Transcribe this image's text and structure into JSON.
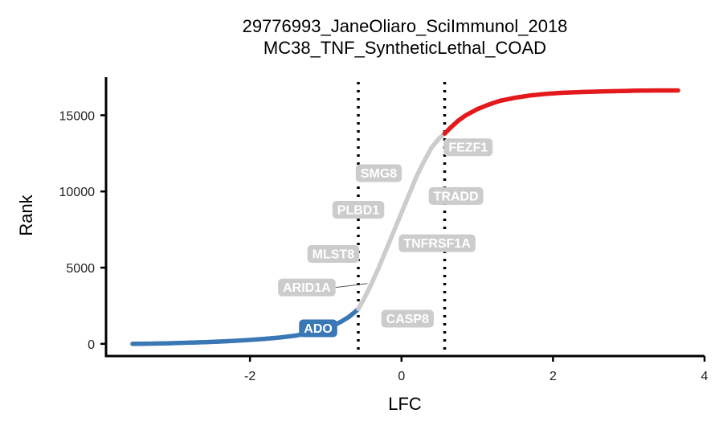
{
  "chart_data": {
    "type": "scatter",
    "title_lines": [
      "29776993_JaneOliaro_SciImmunol_2018",
      "MC38_TNF_SyntheticLethal_COAD"
    ],
    "xlabel": "LFC",
    "ylabel": "Rank",
    "xlim": [
      -3.9,
      4
    ],
    "ylim": [
      -800,
      17500
    ],
    "x_ticks": [
      -2,
      0,
      2,
      4
    ],
    "x_tick_labels": [
      "-2",
      "0",
      "2",
      "4"
    ],
    "y_ticks": [
      0,
      5000,
      10000,
      15000
    ],
    "y_tick_labels": [
      "0",
      "5000",
      "10000",
      "15000"
    ],
    "thresholds": [
      -0.57,
      0.57
    ],
    "grid": false,
    "legend": "none",
    "series": [
      {
        "color": "#3a78b5",
        "x": [
          -3.55,
          -3.5,
          -3.4,
          -3.2,
          -3.1,
          -3.0,
          -2.8,
          -2.6,
          -2.4,
          -2.2,
          -2.0,
          -1.8,
          -1.6,
          -1.4,
          -1.2,
          -1.0,
          -0.9,
          -0.8,
          -0.7,
          -0.65,
          -0.6,
          -0.57
        ],
        "y": [
          0,
          5,
          10,
          25,
          35,
          50,
          80,
          110,
          150,
          200,
          260,
          330,
          420,
          540,
          720,
          1000,
          1200,
          1450,
          1750,
          1950,
          2150,
          2300
        ]
      },
      {
        "color": "#cccccc",
        "x": [
          -0.57,
          -0.5,
          -0.4,
          -0.3,
          -0.2,
          -0.1,
          0.0,
          0.1,
          0.2,
          0.3,
          0.4,
          0.5,
          0.57
        ],
        "y": [
          2300,
          2900,
          3900,
          5000,
          6200,
          7400,
          8600,
          9800,
          11000,
          12000,
          12900,
          13500,
          13800
        ]
      },
      {
        "color": "#e31a1c",
        "x": [
          0.57,
          0.65,
          0.75,
          0.85,
          1.0,
          1.15,
          1.3,
          1.5,
          1.7,
          1.9,
          2.1,
          2.4,
          2.7,
          3.0,
          3.1,
          3.3,
          3.65
        ],
        "y": [
          13800,
          14200,
          14650,
          15000,
          15400,
          15700,
          15950,
          16150,
          16300,
          16400,
          16470,
          16530,
          16570,
          16600,
          16615,
          16625,
          16630
        ]
      }
    ],
    "labels": [
      {
        "text": "FEZF1",
        "x": 0.88,
        "y": 12900,
        "color": "#cccccc",
        "point_x": 0.88,
        "point_y": 12900
      },
      {
        "text": "SMG8",
        "x": -0.3,
        "y": 11200,
        "color": "#cccccc",
        "point_x": -0.3,
        "point_y": 11200
      },
      {
        "text": "TRADD",
        "x": 0.72,
        "y": 9700,
        "color": "#cccccc",
        "point_x": 0.72,
        "point_y": 9700
      },
      {
        "text": "PLBD1",
        "x": -0.57,
        "y": 8800,
        "color": "#cccccc",
        "point_x": -0.57,
        "point_y": 8800
      },
      {
        "text": "TNFRSF1A",
        "x": 0.47,
        "y": 6600,
        "color": "#cccccc",
        "point_x": 0.47,
        "point_y": 6600
      },
      {
        "text": "MLST8",
        "x": -0.9,
        "y": 5900,
        "color": "#cccccc",
        "point_x": -0.9,
        "point_y": 5900
      },
      {
        "text": "ARID1A",
        "x": -1.25,
        "y": 3700,
        "color": "#cccccc",
        "point_x": -0.45,
        "point_y": 3950
      },
      {
        "text": "CASP8",
        "x": 0.08,
        "y": 1650,
        "color": "#cccccc",
        "point_x": 0.08,
        "point_y": 1650
      },
      {
        "text": "ADO",
        "x": -1.1,
        "y": 1020,
        "color": "#3a78b5",
        "point_x": -1.1,
        "point_y": 1020
      }
    ]
  }
}
